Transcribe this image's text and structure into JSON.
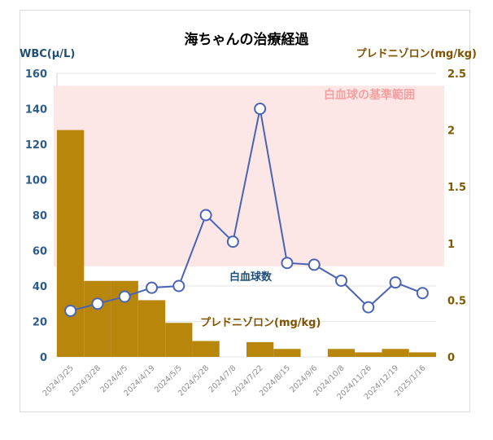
{
  "chart_data": {
    "type": "bar+line",
    "title": "海ちゃんの治療経過",
    "categories": [
      "2024/3/25",
      "2024/3/28",
      "2024/4/5",
      "2024/4/19",
      "2024/5/5",
      "2024/5/28",
      "2024/7/8",
      "2024/7/22",
      "2024/8/15",
      "2024/9/6",
      "2024/10/8",
      "2024/11/26",
      "2024/12/19",
      "2025/1/16"
    ],
    "left_axis": {
      "label": "WBC(μ/L)",
      "ylim": [
        0,
        160
      ],
      "ticks": [
        "0",
        "20",
        "40",
        "60",
        "80",
        "100",
        "120",
        "140",
        "160"
      ]
    },
    "right_axis": {
      "label": "プレドニゾロン(mg/kg)",
      "ylim": [
        0,
        2.5
      ],
      "ticks": [
        "0",
        "0.5",
        "1",
        "1.5",
        "2",
        "2.5"
      ]
    },
    "series": [
      {
        "name": "プレドニゾロン(mg/kg)",
        "type": "bar",
        "axis": "right",
        "color": "#b8860b",
        "values": [
          2.0,
          0.67,
          0.67,
          0.5,
          0.3,
          0.14,
          0,
          0.13,
          0.07,
          0,
          0.07,
          0.04,
          0.07,
          0.04
        ]
      },
      {
        "name": "白血球数",
        "type": "line",
        "axis": "left",
        "color": "#4a64b4",
        "values": [
          26,
          30,
          34,
          39,
          40,
          80,
          65,
          140,
          53,
          52,
          43,
          28,
          42,
          36
        ]
      }
    ],
    "reference_band": {
      "label": "白血球の基準範囲",
      "axis": "left",
      "range": [
        51,
        153
      ],
      "color": "#fde6e6"
    },
    "annotations": {
      "wbc_label": "白血球数",
      "pred_label": "プレドニゾロン(mg/kg)"
    },
    "grid": true,
    "legend": "none"
  }
}
